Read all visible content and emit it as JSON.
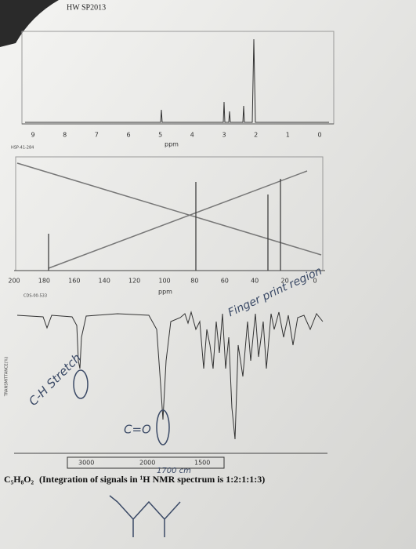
{
  "header": {
    "title": "HW SP2013"
  },
  "nmr_1h": {
    "code": "HSP-41-284",
    "ticks": [
      "9",
      "8",
      "7",
      "6",
      "5",
      "4",
      "3",
      "2",
      "1",
      "0"
    ],
    "unit": "ppm"
  },
  "nmr_13c": {
    "code": "CDS-00-533",
    "ticks": [
      "200",
      "180",
      "160",
      "140",
      "120",
      "100",
      "80",
      "60",
      "40",
      "20",
      "0"
    ],
    "unit": "ppm"
  },
  "ir": {
    "y_label": "TRANSMITTANCE(%)",
    "ticks": [
      "3000",
      "2000",
      "1500"
    ]
  },
  "formula": {
    "text": "C₅H₈O₂",
    "note": "(Integration of signals in ¹H NMR spectrum is 1:2:1:1:3)"
  },
  "annotations": {
    "ch_stretch": "C-H Stretch",
    "carbonyl": "C=O",
    "fingerprint": "Finger print region",
    "wavenumber": "1700 cm"
  }
}
